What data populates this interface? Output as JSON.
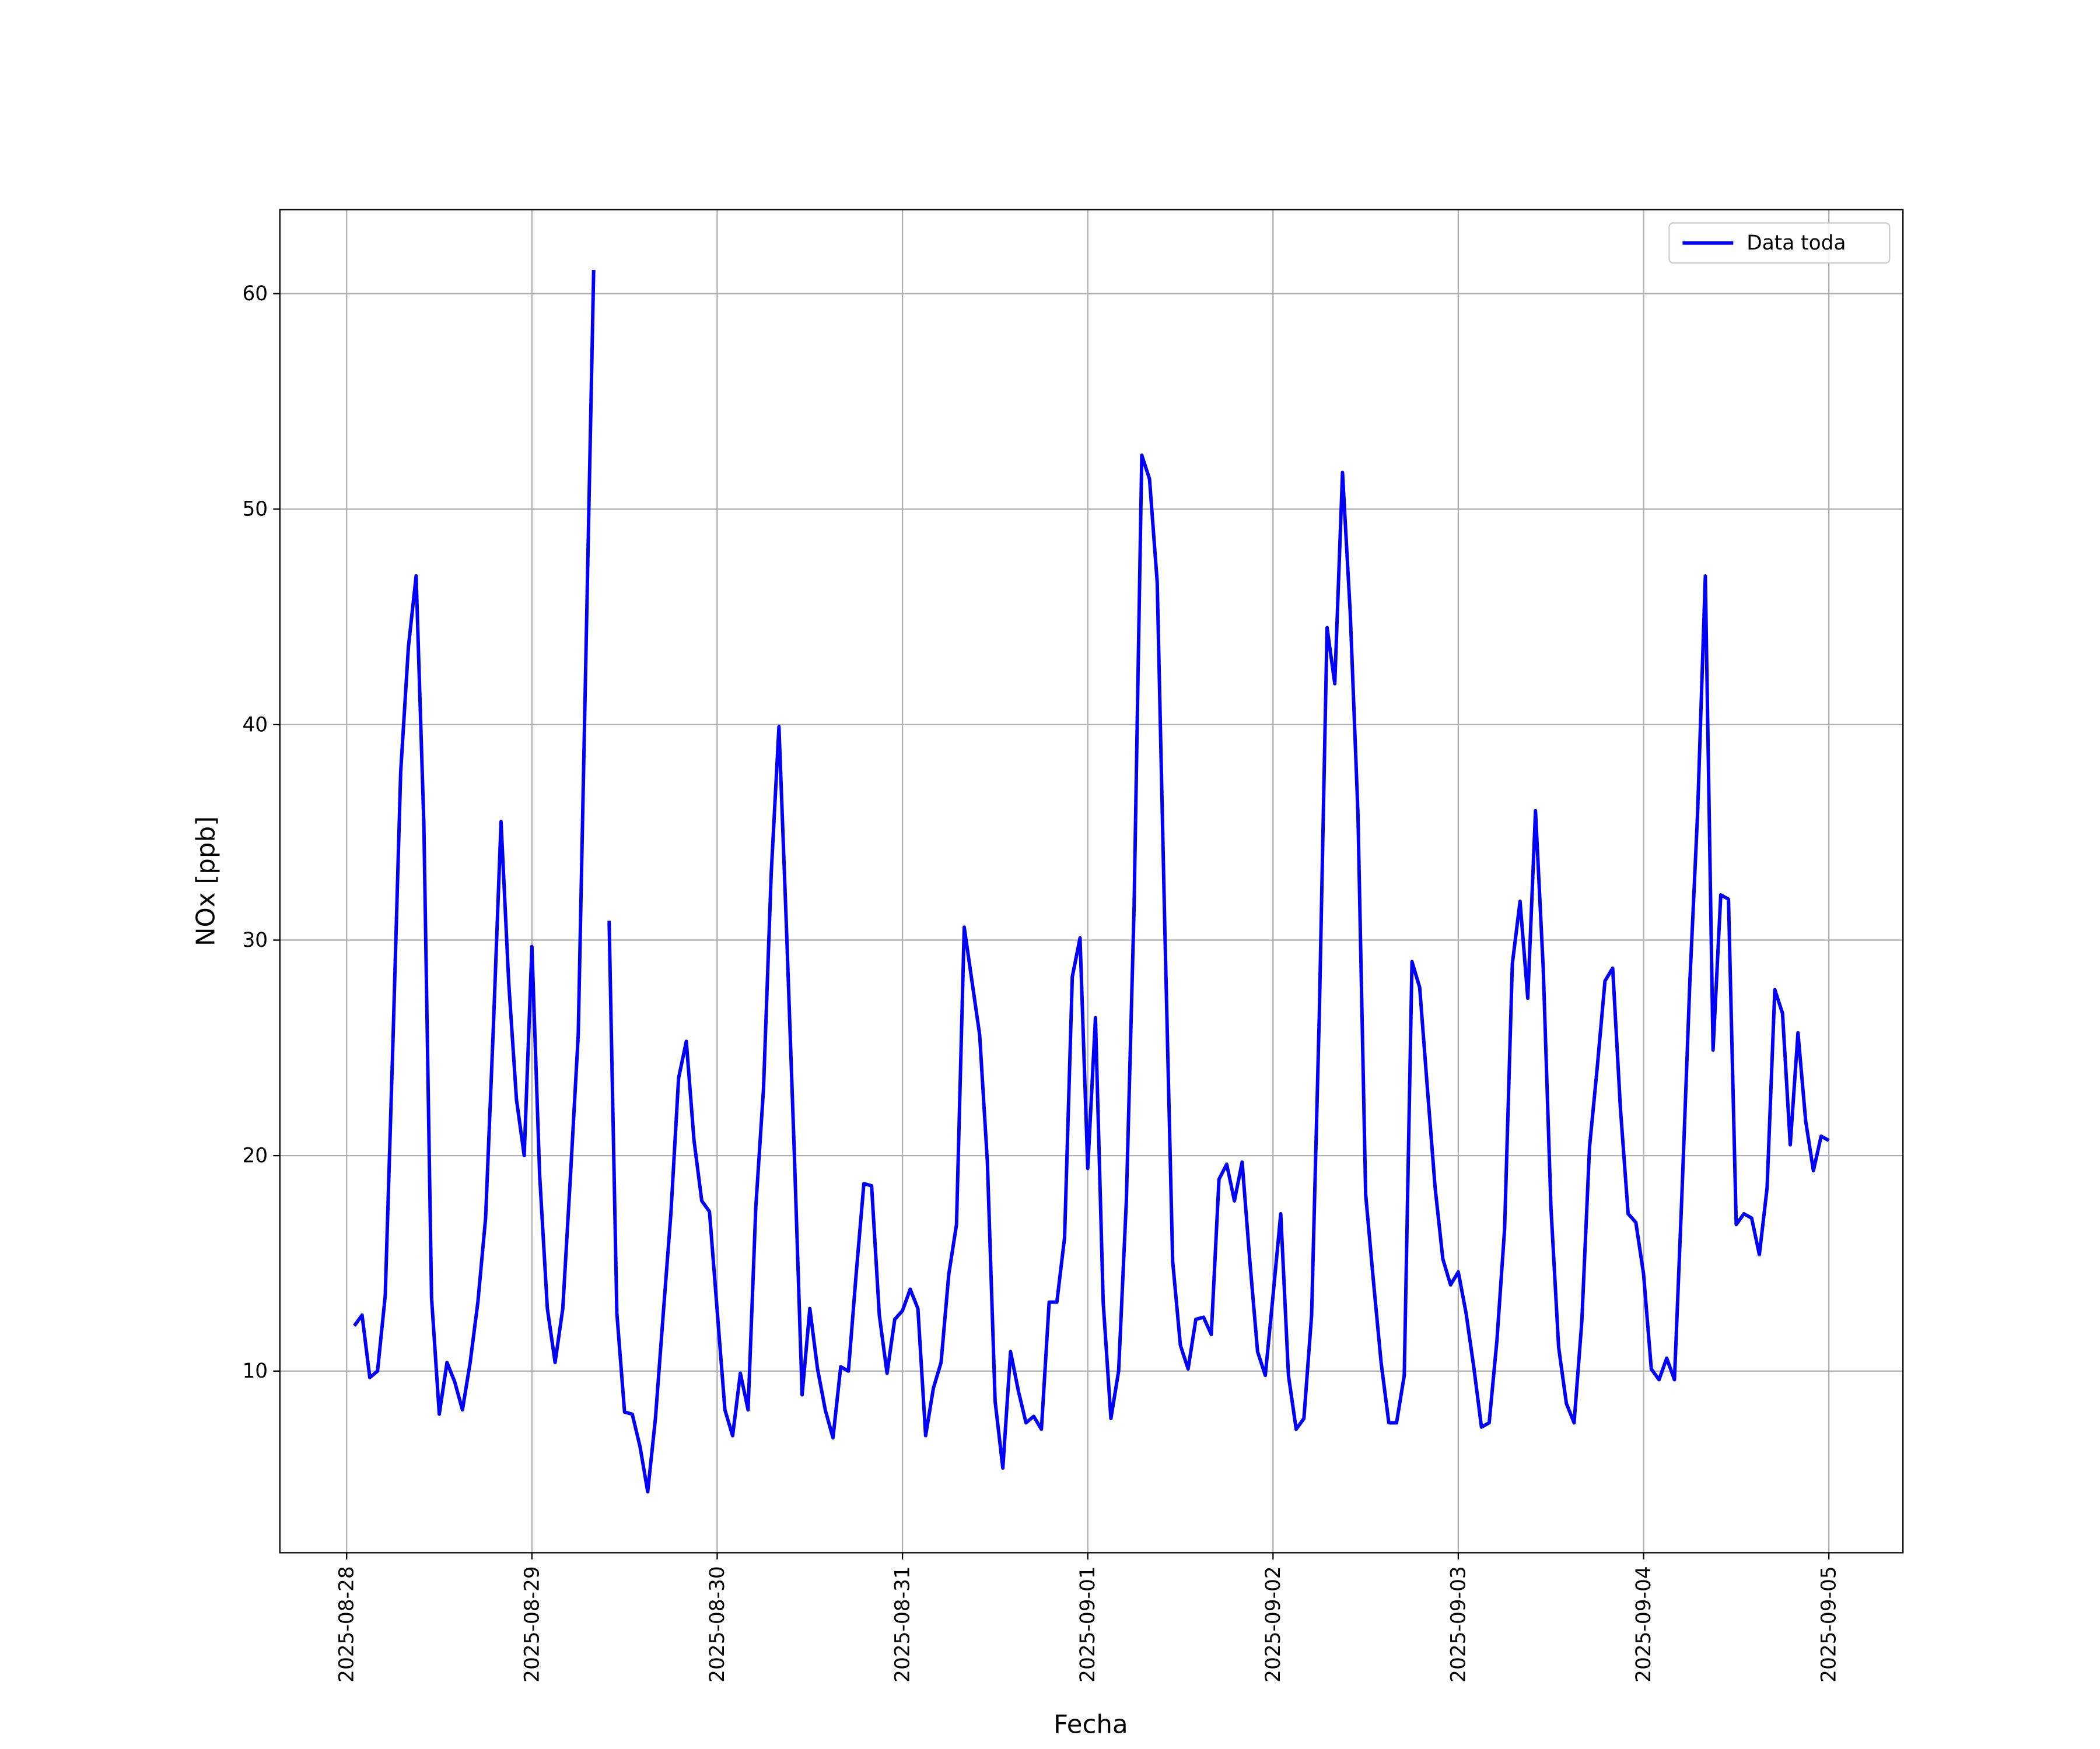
{
  "chart_data": {
    "type": "line",
    "x_label": "Fecha",
    "y_label": "NOx [ppb]",
    "x": [
      "2025-08-28T01:00",
      "2025-08-28T02:00",
      "2025-08-28T03:00",
      "2025-08-28T04:00",
      "2025-08-28T05:00",
      "2025-08-28T06:00",
      "2025-08-28T07:00",
      "2025-08-28T08:00",
      "2025-08-28T09:00",
      "2025-08-28T10:00",
      "2025-08-28T11:00",
      "2025-08-28T12:00",
      "2025-08-28T13:00",
      "2025-08-28T14:00",
      "2025-08-28T15:00",
      "2025-08-28T16:00",
      "2025-08-28T17:00",
      "2025-08-28T18:00",
      "2025-08-28T19:00",
      "2025-08-28T20:00",
      "2025-08-28T21:00",
      "2025-08-28T22:00",
      "2025-08-28T23:00",
      "2025-08-29T00:00",
      "2025-08-29T01:00",
      "2025-08-29T02:00",
      "2025-08-29T03:00",
      "2025-08-29T04:00",
      "2025-08-29T05:00",
      "2025-08-29T06:00",
      "2025-08-29T07:00",
      "2025-08-29T08:00",
      "2025-08-29T09:00",
      "2025-08-29T10:00",
      "2025-08-29T11:00",
      "2025-08-29T12:00",
      "2025-08-29T13:00",
      "2025-08-29T14:00",
      "2025-08-29T15:00",
      "2025-08-29T16:00",
      "2025-08-29T17:00",
      "2025-08-29T18:00",
      "2025-08-29T19:00",
      "2025-08-29T20:00",
      "2025-08-29T21:00",
      "2025-08-29T22:00",
      "2025-08-29T23:00",
      "2025-08-30T00:00",
      "2025-08-30T01:00",
      "2025-08-30T02:00",
      "2025-08-30T03:00",
      "2025-08-30T04:00",
      "2025-08-30T05:00",
      "2025-08-30T06:00",
      "2025-08-30T07:00",
      "2025-08-30T08:00",
      "2025-08-30T09:00",
      "2025-08-30T10:00",
      "2025-08-30T11:00",
      "2025-08-30T12:00",
      "2025-08-30T13:00",
      "2025-08-30T14:00",
      "2025-08-30T15:00",
      "2025-08-30T16:00",
      "2025-08-30T17:00",
      "2025-08-30T18:00",
      "2025-08-30T19:00",
      "2025-08-30T20:00",
      "2025-08-30T21:00",
      "2025-08-30T22:00",
      "2025-08-30T23:00",
      "2025-08-31T00:00",
      "2025-08-31T01:00",
      "2025-08-31T02:00",
      "2025-08-31T03:00",
      "2025-08-31T04:00",
      "2025-08-31T05:00",
      "2025-08-31T06:00",
      "2025-08-31T07:00",
      "2025-08-31T08:00",
      "2025-08-31T09:00",
      "2025-08-31T10:00",
      "2025-08-31T11:00",
      "2025-08-31T12:00",
      "2025-08-31T13:00",
      "2025-08-31T14:00",
      "2025-08-31T15:00",
      "2025-08-31T16:00",
      "2025-08-31T17:00",
      "2025-08-31T18:00",
      "2025-08-31T19:00",
      "2025-08-31T20:00",
      "2025-08-31T21:00",
      "2025-08-31T22:00",
      "2025-08-31T23:00",
      "2025-09-01T00:00",
      "2025-09-01T01:00",
      "2025-09-01T02:00",
      "2025-09-01T03:00",
      "2025-09-01T04:00",
      "2025-09-01T05:00",
      "2025-09-01T06:00",
      "2025-09-01T07:00",
      "2025-09-01T08:00",
      "2025-09-01T09:00",
      "2025-09-01T10:00",
      "2025-09-01T11:00",
      "2025-09-01T12:00",
      "2025-09-01T13:00",
      "2025-09-01T14:00",
      "2025-09-01T15:00",
      "2025-09-01T16:00",
      "2025-09-01T17:00",
      "2025-09-01T18:00",
      "2025-09-01T19:00",
      "2025-09-01T20:00",
      "2025-09-01T21:00",
      "2025-09-01T22:00",
      "2025-09-01T23:00",
      "2025-09-02T00:00",
      "2025-09-02T01:00",
      "2025-09-02T02:00",
      "2025-09-02T03:00",
      "2025-09-02T04:00",
      "2025-09-02T05:00",
      "2025-09-02T06:00",
      "2025-09-02T07:00",
      "2025-09-02T08:00",
      "2025-09-02T09:00",
      "2025-09-02T10:00",
      "2025-09-02T11:00",
      "2025-09-02T12:00",
      "2025-09-02T13:00",
      "2025-09-02T14:00",
      "2025-09-02T15:00",
      "2025-09-02T16:00",
      "2025-09-02T17:00",
      "2025-09-02T18:00",
      "2025-09-02T19:00",
      "2025-09-02T20:00",
      "2025-09-02T21:00",
      "2025-09-02T22:00",
      "2025-09-02T23:00",
      "2025-09-03T00:00",
      "2025-09-03T01:00",
      "2025-09-03T02:00",
      "2025-09-03T03:00",
      "2025-09-03T04:00",
      "2025-09-03T05:00",
      "2025-09-03T06:00",
      "2025-09-03T07:00",
      "2025-09-03T08:00",
      "2025-09-03T09:00",
      "2025-09-03T10:00",
      "2025-09-03T11:00",
      "2025-09-03T12:00",
      "2025-09-03T13:00",
      "2025-09-03T14:00",
      "2025-09-03T15:00",
      "2025-09-03T16:00",
      "2025-09-03T17:00",
      "2025-09-03T18:00",
      "2025-09-03T19:00",
      "2025-09-03T20:00",
      "2025-09-03T21:00",
      "2025-09-03T22:00",
      "2025-09-03T23:00",
      "2025-09-04T00:00",
      "2025-09-04T01:00",
      "2025-09-04T02:00",
      "2025-09-04T03:00",
      "2025-09-04T04:00",
      "2025-09-04T05:00",
      "2025-09-04T06:00",
      "2025-09-04T07:00",
      "2025-09-04T08:00",
      "2025-09-04T09:00",
      "2025-09-04T10:00",
      "2025-09-04T11:00",
      "2025-09-04T12:00",
      "2025-09-04T13:00",
      "2025-09-04T14:00",
      "2025-09-04T15:00",
      "2025-09-04T16:00",
      "2025-09-04T17:00",
      "2025-09-04T18:00",
      "2025-09-04T19:00",
      "2025-09-04T20:00",
      "2025-09-04T21:00",
      "2025-09-04T22:00",
      "2025-09-04T23:00",
      "2025-09-05T00:00"
    ],
    "series": [
      {
        "name": "Data toda",
        "color": "#0000ff",
        "values": [
          12.1,
          12.6,
          9.7,
          10.0,
          13.5,
          25.3,
          37.8,
          43.6,
          46.9,
          35.4,
          13.4,
          8.0,
          10.4,
          9.5,
          8.2,
          10.4,
          13.2,
          17.1,
          25.9,
          35.5,
          28.0,
          22.6,
          20.0,
          29.7,
          19.1,
          12.9,
          10.4,
          12.9,
          19.1,
          25.6,
          43.3,
          61.1,
          null,
          30.9,
          12.7,
          8.1,
          8.0,
          6.5,
          4.4,
          7.8,
          12.6,
          17.3,
          23.6,
          25.3,
          20.7,
          17.9,
          17.4,
          12.8,
          8.2,
          7.0,
          9.9,
          8.2,
          17.6,
          23.1,
          33.1,
          39.9,
          30.3,
          20.0,
          8.9,
          12.9,
          10.1,
          8.2,
          6.9,
          10.2,
          10.0,
          14.5,
          18.7,
          18.6,
          12.6,
          9.9,
          12.4,
          12.8,
          13.8,
          12.9,
          7.0,
          9.2,
          10.4,
          14.5,
          16.8,
          30.6,
          28.1,
          25.6,
          19.7,
          8.6,
          5.5,
          10.9,
          9.1,
          7.6,
          7.9,
          7.3,
          13.2,
          13.2,
          16.2,
          28.3,
          30.1,
          19.4,
          26.4,
          13.2,
          7.8,
          10.0,
          17.9,
          31.5,
          52.5,
          51.4,
          46.6,
          30.3,
          15.1,
          11.2,
          10.1,
          12.4,
          12.5,
          11.7,
          18.9,
          19.6,
          17.9,
          19.7,
          15.1,
          10.9,
          9.8,
          13.5,
          17.3,
          9.8,
          7.3,
          7.8,
          12.6,
          26.6,
          44.5,
          41.9,
          51.7,
          45.2,
          35.9,
          18.2,
          14.2,
          10.4,
          7.6,
          7.6,
          9.8,
          29.0,
          27.8,
          23.1,
          18.5,
          15.2,
          14.0,
          14.6,
          12.7,
          10.2,
          7.4,
          7.6,
          11.4,
          16.6,
          28.9,
          31.8,
          27.3,
          36.0,
          28.7,
          17.6,
          11.1,
          8.5,
          7.6,
          12.3,
          20.4,
          24.1,
          28.1,
          28.7,
          22.2,
          17.3,
          16.9,
          14.5,
          10.1,
          9.6,
          10.6,
          9.6,
          18.5,
          28.1,
          35.9,
          46.9,
          24.9,
          32.1,
          31.9,
          16.8,
          17.3,
          17.1,
          15.4,
          18.5,
          27.7,
          26.6,
          20.5,
          25.7,
          21.6,
          19.3,
          20.9,
          20.7
        ]
      }
    ],
    "xlim": [
      "2025-08-27T15:21",
      "2025-09-05T09:36"
    ],
    "xticks": [
      "2025-08-28",
      "2025-08-29",
      "2025-08-30",
      "2025-08-31",
      "2025-09-01",
      "2025-09-02",
      "2025-09-03",
      "2025-09-04",
      "2025-09-05"
    ],
    "ylim": [
      1.57,
      63.9
    ],
    "yticks": [
      10,
      20,
      30,
      40,
      50,
      60
    ],
    "grid": true,
    "legend": "upper right"
  }
}
